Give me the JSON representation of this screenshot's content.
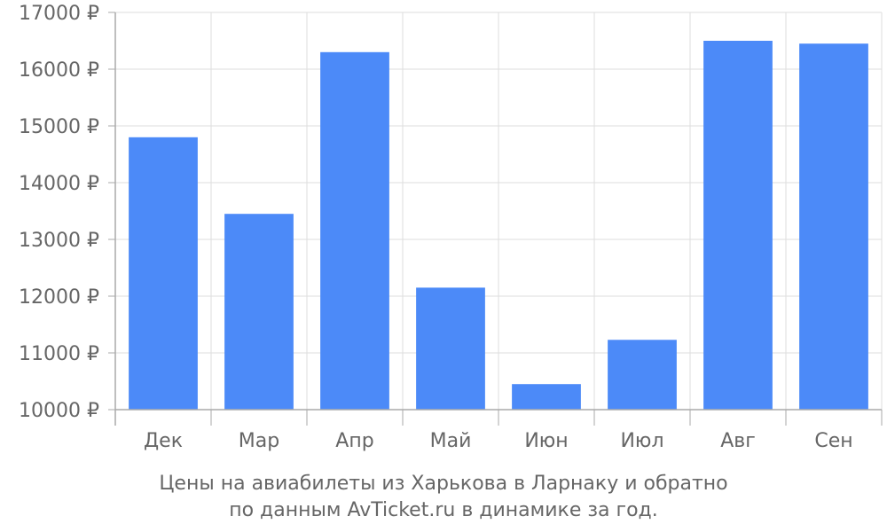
{
  "colors": {
    "bar": "#4c8af8",
    "grid": "#dddddd",
    "axis": "#aaaaaa",
    "text": "#666666",
    "background": "#ffffff"
  },
  "caption": {
    "line1": "Цены на авиабилеты из Харькова в Ларнаку и обратно",
    "line2": "по данным AvTicket.ru в динамике за год."
  },
  "chart_data": {
    "type": "bar",
    "title": "",
    "xlabel": "",
    "ylabel": "",
    "categories": [
      "Дек",
      "Мар",
      "Апр",
      "Май",
      "Июн",
      "Июл",
      "Авг",
      "Сен"
    ],
    "values": [
      14800,
      13450,
      16300,
      12150,
      10450,
      11230,
      16500,
      16450
    ],
    "ylim": [
      10000,
      17000
    ],
    "yticks": [
      10000,
      11000,
      12000,
      13000,
      14000,
      15000,
      16000,
      17000
    ],
    "ytick_labels": [
      "10000 ₽",
      "11000 ₽",
      "12000 ₽",
      "13000 ₽",
      "14000 ₽",
      "15000 ₽",
      "16000 ₽",
      "17000 ₽"
    ],
    "grid": true,
    "legend": "none"
  }
}
